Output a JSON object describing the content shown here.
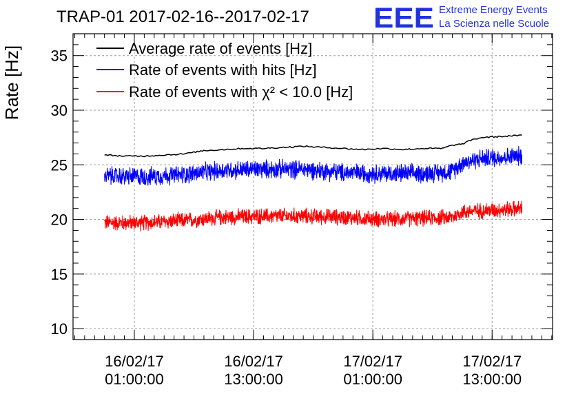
{
  "header": {
    "title": "TRAP-01 2017-02-16--2017-02-17",
    "logo_mark": "EEE",
    "logo_line1": "Extreme Energy Events",
    "logo_line2": "La Scienza nelle Scuole"
  },
  "chart_data": {
    "type": "line",
    "title": "TRAP-01 2017-02-16--2017-02-17",
    "ylabel": "Rate [Hz]",
    "xlabel": "",
    "ylim": [
      9,
      37
    ],
    "xlim": [
      "2017-02-15 18:50:00",
      "2017-02-17 19:05:00"
    ],
    "yticks": [
      10,
      15,
      20,
      25,
      30,
      35
    ],
    "xticks": [
      {
        "date": "16/02/17",
        "time": "01:00:00",
        "t": "2017-02-16 01:00:00"
      },
      {
        "date": "16/02/17",
        "time": "13:00:00",
        "t": "2017-02-16 13:00:00"
      },
      {
        "date": "17/02/17",
        "time": "01:00:00",
        "t": "2017-02-17 01:00:00"
      },
      {
        "date": "17/02/17",
        "time": "13:00:00",
        "t": "2017-02-17 13:00:00"
      }
    ],
    "grid": true,
    "legend_position": "top-left",
    "series": [
      {
        "name": "Average rate of events [Hz]",
        "color": "#000000",
        "noise": 0,
        "x": [
          "2017-02-15 22:00:00",
          "2017-02-16 00:00:00",
          "2017-02-16 02:00:00",
          "2017-02-16 04:00:00",
          "2017-02-16 06:00:00",
          "2017-02-16 08:00:00",
          "2017-02-16 10:00:00",
          "2017-02-16 12:00:00",
          "2017-02-16 14:00:00",
          "2017-02-16 16:00:00",
          "2017-02-16 18:00:00",
          "2017-02-16 20:00:00",
          "2017-02-16 22:00:00",
          "2017-02-17 00:00:00",
          "2017-02-17 02:00:00",
          "2017-02-17 04:00:00",
          "2017-02-17 06:00:00",
          "2017-02-17 08:00:00",
          "2017-02-17 09:00:00",
          "2017-02-17 10:00:00",
          "2017-02-17 11:00:00",
          "2017-02-17 12:00:00",
          "2017-02-17 14:00:00",
          "2017-02-17 16:00:00"
        ],
        "values": [
          25.9,
          25.8,
          25.8,
          25.9,
          26.0,
          26.3,
          26.4,
          26.5,
          26.5,
          26.6,
          26.7,
          26.6,
          26.5,
          26.4,
          26.5,
          26.4,
          26.5,
          26.5,
          26.8,
          26.9,
          27.3,
          27.5,
          27.6,
          27.7
        ]
      },
      {
        "name": "Rate of events with hits [Hz]",
        "color": "#0000ff",
        "noise": 1.0,
        "x": [
          "2017-02-15 22:00:00",
          "2017-02-16 02:00:00",
          "2017-02-16 06:00:00",
          "2017-02-16 10:00:00",
          "2017-02-16 14:00:00",
          "2017-02-16 18:00:00",
          "2017-02-16 22:00:00",
          "2017-02-17 02:00:00",
          "2017-02-17 06:00:00",
          "2017-02-17 09:00:00",
          "2017-02-17 10:00:00",
          "2017-02-17 12:00:00",
          "2017-02-17 16:00:00"
        ],
        "values": [
          24.0,
          23.9,
          24.1,
          24.5,
          24.6,
          24.6,
          24.3,
          24.2,
          24.2,
          24.4,
          25.2,
          25.6,
          25.8
        ]
      },
      {
        "name": "Rate of events with χ² < 10.0 [Hz]",
        "color": "#ff0000",
        "noise": 0.85,
        "x": [
          "2017-02-15 22:00:00",
          "2017-02-16 02:00:00",
          "2017-02-16 06:00:00",
          "2017-02-16 10:00:00",
          "2017-02-16 14:00:00",
          "2017-02-16 18:00:00",
          "2017-02-16 22:00:00",
          "2017-02-17 02:00:00",
          "2017-02-17 06:00:00",
          "2017-02-17 09:00:00",
          "2017-02-17 10:00:00",
          "2017-02-17 12:00:00",
          "2017-02-17 16:00:00"
        ],
        "values": [
          19.7,
          19.7,
          19.9,
          20.2,
          20.3,
          20.3,
          20.2,
          20.0,
          20.1,
          20.2,
          20.7,
          20.8,
          21.0
        ]
      }
    ]
  }
}
